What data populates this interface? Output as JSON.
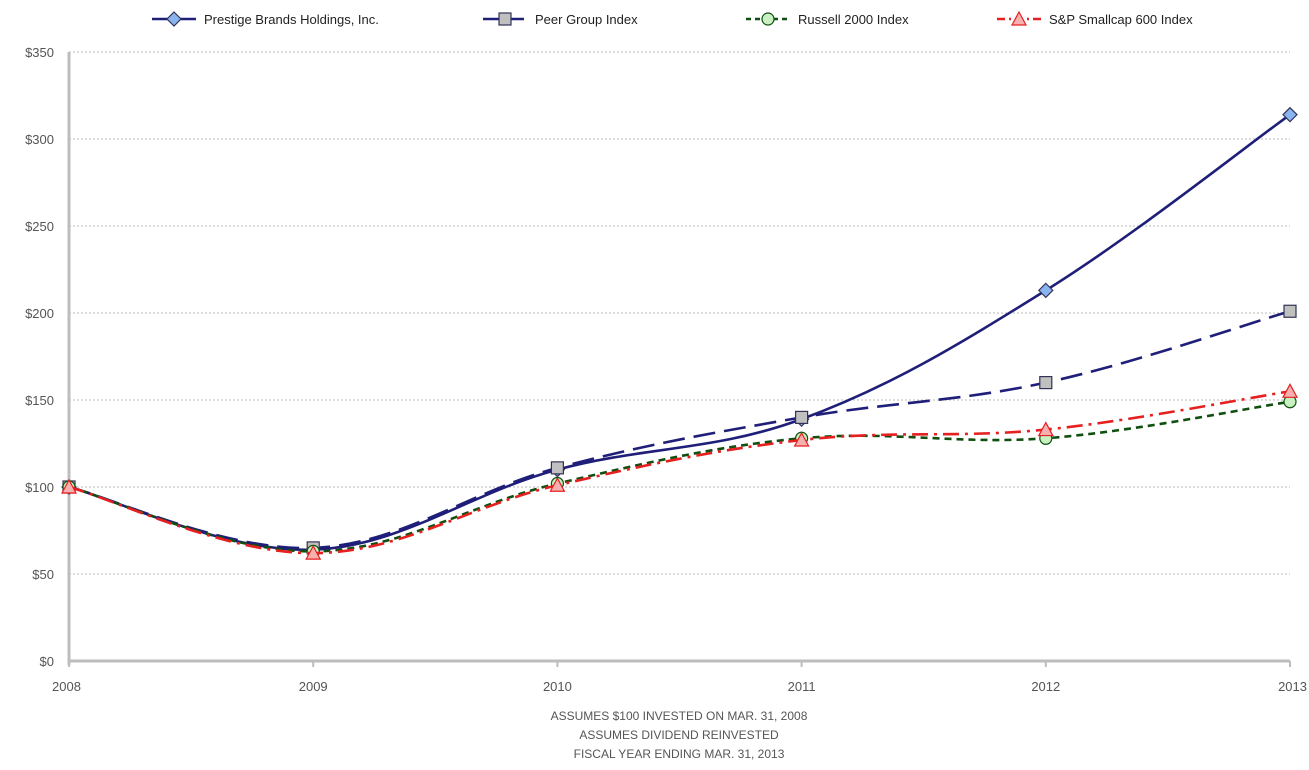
{
  "chart_data": {
    "type": "line",
    "title": "",
    "xlabel": "",
    "ylabel": "",
    "categories": [
      "2008",
      "2009",
      "2010",
      "2011",
      "2012",
      "2013"
    ],
    "ylim": [
      0,
      350
    ],
    "yticks": [
      0,
      50,
      100,
      150,
      200,
      250,
      300,
      350
    ],
    "ytick_labels": [
      "$0",
      "$50",
      "$100",
      "$150",
      "$200",
      "$250",
      "$300",
      "$350"
    ],
    "grid": "horizontal dotted",
    "legend_position": "top",
    "series": [
      {
        "name": "Prestige Brands Holdings, Inc.",
        "values": [
          100,
          64,
          110,
          139,
          213,
          314
        ],
        "color": "#1f1f7a",
        "dash": "solid",
        "marker": "diamond",
        "marker_fill": "#8ab4f0"
      },
      {
        "name": "Peer Group Index",
        "values": [
          100,
          65,
          111,
          140,
          160,
          201
        ],
        "color": "#1f1f7a",
        "dash": "long-dash",
        "marker": "square",
        "marker_fill": "#c0c0c0"
      },
      {
        "name": "Russell 2000 Index",
        "values": [
          100,
          63,
          102,
          128,
          128,
          149
        ],
        "color": "#0f4f0f",
        "dash": "short-dash",
        "marker": "circle",
        "marker_fill": "#c8f0c0"
      },
      {
        "name": "S&P Smallcap 600 Index",
        "values": [
          100,
          62,
          101,
          127,
          133,
          155
        ],
        "color": "#e62020",
        "dash": "dash-dot",
        "marker": "triangle",
        "marker_fill": "#f7b0b0"
      }
    ],
    "annotations": [
      "ASSUMES $100 INVESTED ON MAR. 31, 2008",
      "ASSUMES DIVIDEND REINVESTED",
      "FISCAL YEAR ENDING MAR. 31, 2013"
    ]
  }
}
